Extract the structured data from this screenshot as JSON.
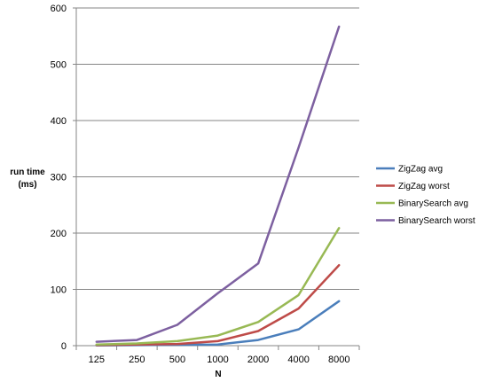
{
  "chart_data": {
    "type": "line",
    "title": "",
    "xlabel": "N",
    "ylabel_lines": [
      "run time",
      "(ms)"
    ],
    "categories": [
      "125",
      "250",
      "500",
      "1000",
      "2000",
      "4000",
      "8000"
    ],
    "ylim": [
      0,
      600
    ],
    "yticks": [
      "0",
      "100",
      "200",
      "300",
      "400",
      "500",
      "600"
    ],
    "grid": "horizontal",
    "legend_position": "right",
    "series": [
      {
        "name": "ZigZag avg",
        "color": "#4a7ebb",
        "values": [
          0.5,
          1,
          1.5,
          2,
          10,
          29,
          79
        ]
      },
      {
        "name": "ZigZag worst",
        "color": "#be4b48",
        "values": [
          1,
          2,
          3,
          8,
          26,
          66,
          143
        ]
      },
      {
        "name": "BinarySearch avg",
        "color": "#98b954",
        "values": [
          2,
          4,
          8,
          18,
          42,
          90,
          209
        ]
      },
      {
        "name": "BinarySearch worst",
        "color": "#7d60a0",
        "values": [
          7,
          10,
          37,
          93,
          146,
          352,
          567
        ]
      }
    ]
  }
}
